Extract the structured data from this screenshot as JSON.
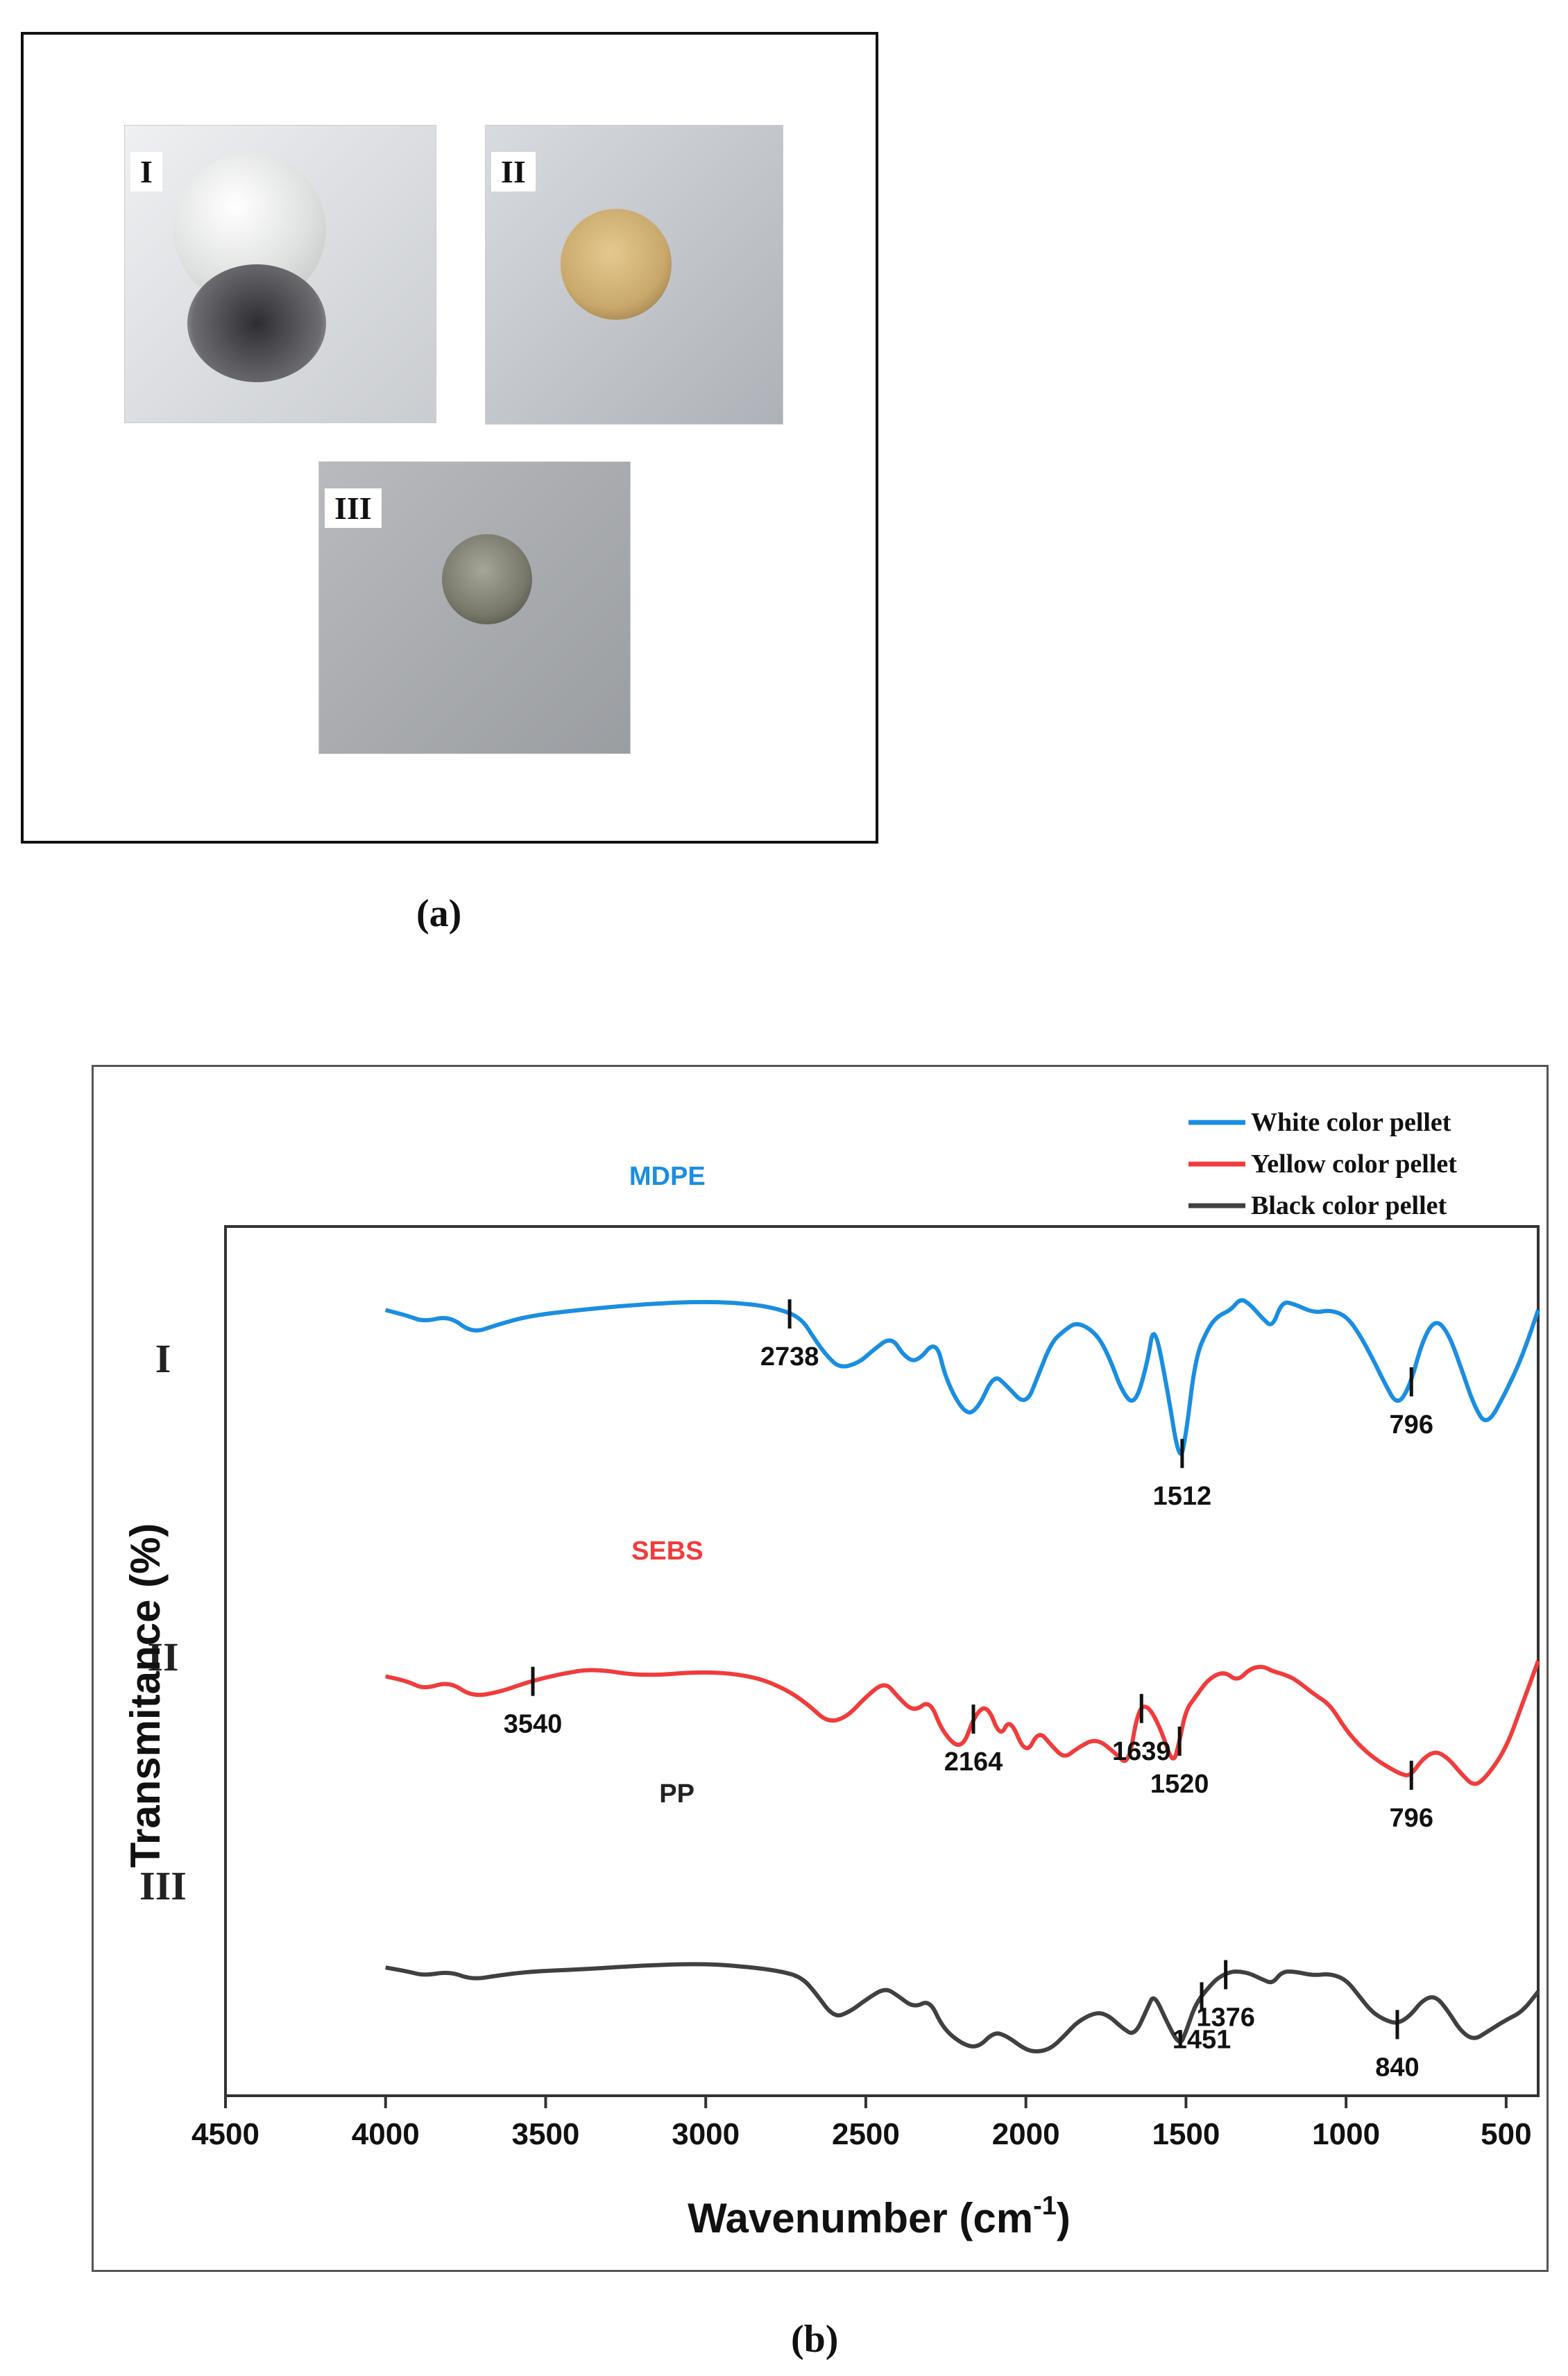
{
  "panel_a": {
    "photos": [
      {
        "label": "I",
        "color": "#dfe1e0"
      },
      {
        "label": "II",
        "color": "#c9a86c"
      },
      {
        "label": "III",
        "color": "#77786a"
      }
    ],
    "caption": "(a)"
  },
  "panel_b_caption": "(b)",
  "chart_data": {
    "type": "line",
    "xlabel": "Wavenumber (cm",
    "xlabel_sup": "-1",
    "xlabel_tail": ")",
    "ylabel": "Transmitance (%)",
    "xlim": [
      4500,
      400
    ],
    "x_ticks": [
      4500,
      4000,
      3500,
      3000,
      2500,
      2000,
      1500,
      1000,
      500
    ],
    "x_tick_labels": [
      "4500",
      "4000",
      "3500",
      "3000",
      "2500",
      "2000",
      "1500",
      "1000",
      "500"
    ],
    "ylim": [
      0,
      100
    ],
    "legend": {
      "position": "top-right",
      "entries": [
        {
          "name": "White color pellet",
          "color": "#1a8ee0"
        },
        {
          "name": "Yellow color pellet",
          "color": "#f03c3c"
        },
        {
          "name": "Black color pellet",
          "color": "#404040"
        }
      ]
    },
    "series": [
      {
        "name": "White color pellet",
        "row_label": "I",
        "curve_label": "MDPE",
        "color": "#1a8ee0",
        "x": [
          4000,
          3930,
          3880,
          3800,
          3730,
          3650,
          3550,
          3400,
          3200,
          3000,
          2850,
          2760,
          2700,
          2660,
          2620,
          2580,
          2520,
          2480,
          2420,
          2380,
          2340,
          2280,
          2250,
          2190,
          2150,
          2100,
          2060,
          2000,
          1960,
          1920,
          1880,
          1840,
          1780,
          1740,
          1700,
          1660,
          1620,
          1600,
          1560,
          1520,
          1500,
          1470,
          1430,
          1400,
          1360,
          1330,
          1300,
          1260,
          1230,
          1200,
          1160,
          1100,
          1050,
          1000,
          960,
          920,
          880,
          840,
          800,
          760,
          720,
          680,
          640,
          600,
          560,
          500,
          450,
          400
        ],
        "y": [
          88,
          86,
          84,
          86,
          80,
          83,
          86,
          88,
          90,
          91,
          90,
          88,
          85,
          78,
          72,
          68,
          70,
          74,
          79,
          72,
          70,
          78,
          64,
          52,
          54,
          66,
          62,
          55,
          66,
          77,
          81,
          84,
          80,
          72,
          60,
          55,
          70,
          84,
          62,
          35,
          45,
          72,
          82,
          86,
          88,
          92,
          90,
          85,
          82,
          91,
          90,
          87,
          88,
          86,
          80,
          72,
          63,
          55,
          62,
          78,
          85,
          80,
          68,
          55,
          48,
          60,
          72,
          88
        ]
      },
      {
        "name": "Yellow color pellet",
        "row_label": "II",
        "curve_label": "SEBS",
        "color": "#f03c3c",
        "x": [
          4000,
          3930,
          3880,
          3800,
          3730,
          3640,
          3550,
          3450,
          3350,
          3200,
          3000,
          2850,
          2750,
          2680,
          2620,
          2560,
          2500,
          2440,
          2400,
          2350,
          2300,
          2260,
          2200,
          2160,
          2120,
          2080,
          2050,
          2000,
          1960,
          1920,
          1880,
          1840,
          1780,
          1720,
          1680,
          1650,
          1620,
          1580,
          1540,
          1520,
          1500,
          1470,
          1430,
          1380,
          1340,
          1300,
          1260,
          1230,
          1200,
          1160,
          1100,
          1050,
          1000,
          950,
          900,
          860,
          830,
          800,
          760,
          720,
          680,
          640,
          600,
          560,
          500,
          450,
          400
        ],
        "y": [
          68,
          66,
          63,
          66,
          60,
          62,
          66,
          69,
          71,
          68,
          70,
          68,
          63,
          57,
          50,
          52,
          60,
          66,
          60,
          54,
          59,
          46,
          39,
          53,
          57,
          44,
          52,
          37,
          47,
          41,
          36,
          40,
          44,
          38,
          33,
          55,
          57,
          48,
          33,
          43,
          55,
          60,
          67,
          70,
          66,
          71,
          72,
          70,
          69,
          67,
          61,
          57,
          47,
          40,
          35,
          32,
          30,
          29,
          36,
          39,
          36,
          30,
          25,
          29,
          40,
          57,
          74
        ]
      },
      {
        "name": "Black color pellet",
        "row_label": "III",
        "curve_label": "PP",
        "color": "#404040",
        "x": [
          4000,
          3930,
          3880,
          3800,
          3730,
          3650,
          3550,
          3400,
          3200,
          3000,
          2850,
          2760,
          2700,
          2660,
          2600,
          2550,
          2500,
          2440,
          2400,
          2350,
          2300,
          2260,
          2200,
          2150,
          2100,
          2060,
          2000,
          1960,
          1920,
          1880,
          1840,
          1780,
          1740,
          1700,
          1660,
          1620,
          1600,
          1560,
          1520,
          1500,
          1470,
          1430,
          1400,
          1360,
          1330,
          1300,
          1260,
          1230,
          1200,
          1160,
          1100,
          1050,
          1000,
          960,
          920,
          880,
          840,
          800,
          760,
          720,
          680,
          640,
          600,
          560,
          500,
          450,
          400
        ],
        "y": [
          42,
          40,
          38,
          40,
          36,
          38,
          40,
          41,
          43,
          44,
          42,
          40,
          37,
          30,
          17,
          20,
          26,
          32,
          28,
          22,
          26,
          12,
          4,
          2,
          10,
          8,
          1,
          0,
          2,
          8,
          15,
          20,
          18,
          12,
          8,
          22,
          29,
          15,
          3,
          10,
          24,
          32,
          37,
          40,
          40,
          39,
          36,
          34,
          40,
          40,
          38,
          39,
          36,
          28,
          20,
          16,
          14,
          18,
          26,
          28,
          20,
          10,
          6,
          10,
          16,
          20,
          30
        ]
      }
    ],
    "annotations": [
      {
        "series": 0,
        "x": 2738,
        "label": "2738"
      },
      {
        "series": 0,
        "x": 1512,
        "label": "1512"
      },
      {
        "series": 0,
        "x": 796,
        "label": "796"
      },
      {
        "series": 1,
        "x": 3540,
        "label": "3540"
      },
      {
        "series": 1,
        "x": 2164,
        "label": "2164"
      },
      {
        "series": 1,
        "x": 1639,
        "label": "1639"
      },
      {
        "series": 1,
        "x": 1520,
        "label": "1520"
      },
      {
        "series": 1,
        "x": 796,
        "label": "796"
      },
      {
        "series": 2,
        "x": 1451,
        "label": "1451"
      },
      {
        "series": 2,
        "x": 1376,
        "label": "1376"
      },
      {
        "series": 2,
        "x": 840,
        "label": "840"
      }
    ]
  }
}
